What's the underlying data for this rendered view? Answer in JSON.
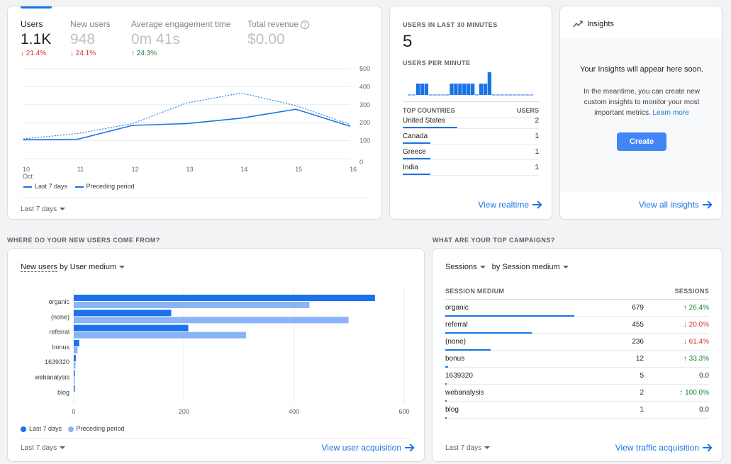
{
  "overview": {
    "metrics": [
      {
        "label": "Users",
        "value": "1.1K",
        "change": "↓ 21.4%",
        "dir": "down"
      },
      {
        "label": "New users",
        "value": "948",
        "change": "↓ 24.1%",
        "dir": "down"
      },
      {
        "label": "Average engagement time",
        "value": "0m 41s",
        "change": "↑ 24.3%",
        "dir": "up"
      },
      {
        "label": "Total revenue",
        "value": "$0.00",
        "change": "",
        "dir": ""
      }
    ],
    "help_glyph": "?",
    "y_ticks": [
      "500",
      "400",
      "300",
      "200",
      "100",
      "0"
    ],
    "x_ticks": [
      "10",
      "11",
      "12",
      "13",
      "14",
      "15",
      "16"
    ],
    "x_month": "Oct",
    "legend_current": "Last 7 days",
    "legend_previous": "Preceding period",
    "date_range": "Last 7 days"
  },
  "realtime": {
    "title": "USERS IN LAST 30 MINUTES",
    "value": "5",
    "per_minute_title": "USERS PER MINUTE",
    "per_minute": [
      0,
      0,
      1,
      1,
      1,
      0,
      0,
      0,
      0,
      0,
      1,
      1,
      1,
      1,
      1,
      1,
      0,
      1,
      1,
      2,
      0,
      0,
      0,
      0,
      0,
      0,
      0,
      0,
      0,
      0
    ],
    "col_country": "TOP COUNTRIES",
    "col_users": "USERS",
    "countries": [
      {
        "name": "United States",
        "users": "2",
        "frac": 1.0
      },
      {
        "name": "Canada",
        "users": "1",
        "frac": 0.5
      },
      {
        "name": "Greece",
        "users": "1",
        "frac": 0.5
      },
      {
        "name": "India",
        "users": "1",
        "frac": 0.5
      }
    ],
    "view_link": "View realtime"
  },
  "insights": {
    "title": "Insights",
    "headline": "Your Insights will appear here soon.",
    "body1": "In the meantime, you can create new",
    "body2": "custom insights to monitor your most",
    "body3": "important metrics.",
    "learn_more": "Learn more",
    "create": "Create",
    "view_link": "View all insights"
  },
  "acquisition": {
    "section_title": "WHERE DO YOUR NEW USERS COME FROM?",
    "metric_selector": "New users",
    "by_label": " by User medium",
    "legend_current": "Last 7 days",
    "legend_previous": "Preceding period",
    "date_range": "Last 7 days",
    "view_link": "View user acquisition"
  },
  "campaigns": {
    "section_title": "WHAT ARE YOUR TOP CAMPAIGNS?",
    "metric_selector": "Sessions",
    "dim_selector": "by Session medium",
    "col_medium": "SESSION MEDIUM",
    "col_sessions": "SESSIONS",
    "rows": [
      {
        "medium": "organic",
        "sessions": "679",
        "change": "↑ 26.4%",
        "dir": "up",
        "frac": 1.0
      },
      {
        "medium": "referral",
        "sessions": "455",
        "change": "↓ 20.0%",
        "dir": "down",
        "frac": 0.67
      },
      {
        "medium": "(none)",
        "sessions": "236",
        "change": "↓ 61.4%",
        "dir": "down",
        "frac": 0.35
      },
      {
        "medium": "bonus",
        "sessions": "12",
        "change": "↑ 33.3%",
        "dir": "up",
        "frac": 0.02
      },
      {
        "medium": "1639320",
        "sessions": "5",
        "change": "0.0",
        "dir": "",
        "frac": 0.008
      },
      {
        "medium": "webanalysis",
        "sessions": "2",
        "change": "↑ 100.0%",
        "dir": "up",
        "frac": 0.004
      },
      {
        "medium": "blog",
        "sessions": "1",
        "change": "0.0",
        "dir": "",
        "frac": 0.002
      }
    ],
    "date_range": "Last 7 days",
    "view_link": "View traffic acquisition"
  },
  "colors": {
    "primary": "#1a73e8",
    "secondary": "#8ab4f8",
    "up": "#188038",
    "down": "#d93025"
  },
  "chart_data": [
    {
      "type": "line",
      "x": [
        "10",
        "11",
        "12",
        "13",
        "14",
        "15",
        "16"
      ],
      "ylim": [
        0,
        500
      ],
      "series": [
        {
          "name": "Last 7 days",
          "values": [
            105,
            108,
            185,
            195,
            225,
            275,
            180
          ]
        },
        {
          "name": "Preceding period",
          "values": [
            110,
            140,
            195,
            310,
            365,
            295,
            190
          ]
        }
      ]
    },
    {
      "type": "bar",
      "orientation": "horizontal",
      "categories": [
        "organic",
        "(none)",
        "referral",
        "bonus",
        "1639320",
        "webanalysis",
        "blog"
      ],
      "xlim": [
        0,
        600
      ],
      "x_ticks": [
        "0",
        "200",
        "400",
        "600"
      ],
      "series": [
        {
          "name": "Last 7 days",
          "values": [
            547,
            177,
            208,
            10,
            4,
            2,
            1
          ]
        },
        {
          "name": "Preceding period",
          "values": [
            428,
            499,
            313,
            7,
            3,
            1,
            0
          ]
        }
      ]
    }
  ]
}
